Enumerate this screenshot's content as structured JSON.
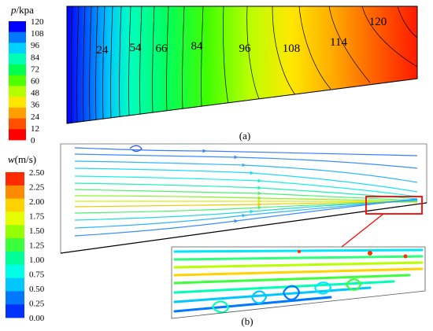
{
  "panel_a": {
    "legend_var": "p",
    "legend_unit": "/kpa",
    "legend_ticks": [
      "120",
      "108",
      "96",
      "84",
      "72",
      "60",
      "48",
      "36",
      "24",
      "12",
      "0"
    ],
    "contour_labels": [
      "24",
      "54",
      "66",
      "84",
      "96",
      "108",
      "114",
      "120"
    ],
    "caption": "(a)",
    "colors": [
      "#0000ff",
      "#0078ff",
      "#00d2ff",
      "#00ffb4",
      "#00ff50",
      "#50ff00",
      "#b4ff00",
      "#ffe600",
      "#ffa000",
      "#ff5000",
      "#ff0000"
    ]
  },
  "panel_b": {
    "legend_var": "w",
    "legend_unit": "(m/s)",
    "legend_ticks": [
      "2.50",
      "2.25",
      "2.00",
      "1.75",
      "1.50",
      "1.25",
      "1.00",
      "0.75",
      "0.50",
      "0.25",
      "0.00"
    ],
    "caption": "(b)",
    "colors": [
      "#ff2a00",
      "#ff8c00",
      "#ffd200",
      "#e6ff00",
      "#96ff00",
      "#3cff3c",
      "#00ff96",
      "#00ffe6",
      "#00c8ff",
      "#0078ff",
      "#0032ff"
    ]
  }
}
